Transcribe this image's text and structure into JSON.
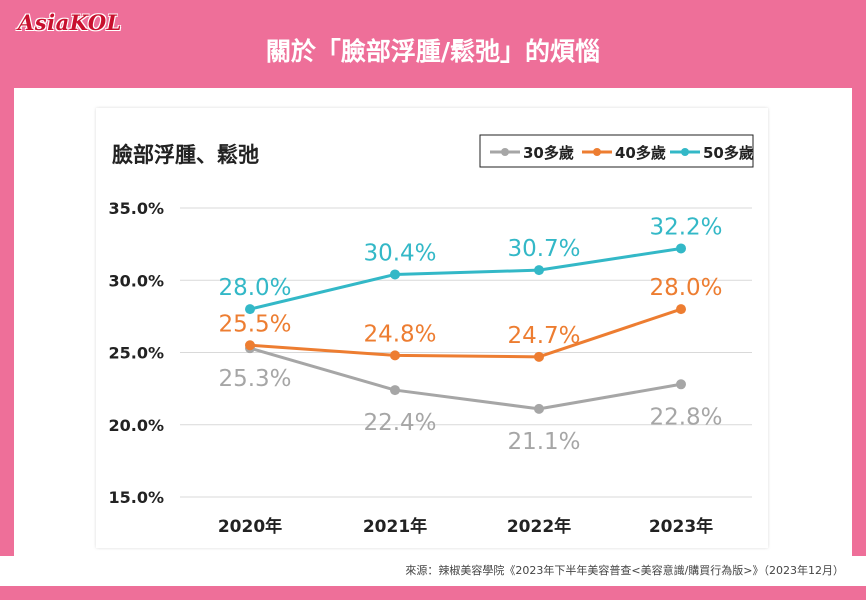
{
  "header": {
    "logo_text": "AsiaKOL",
    "title": "關於「臉部浮腫/鬆弛」的煩惱"
  },
  "colors": {
    "banner": "#ee6f99",
    "series_30": "#a6a6a6",
    "series_40": "#ed7d31",
    "series_50": "#33b8c7"
  },
  "chart_data": {
    "type": "line",
    "title": "臉部浮腫、鬆弛",
    "categories": [
      "2020年",
      "2021年",
      "2022年",
      "2023年"
    ],
    "series": [
      {
        "name": "30多歲",
        "values": [
          25.3,
          22.4,
          21.1,
          22.8
        ],
        "labels": [
          "25.3%",
          "22.4%",
          "21.1%",
          "22.8%"
        ]
      },
      {
        "name": "40多歲",
        "values": [
          25.5,
          24.8,
          24.7,
          28.0
        ],
        "labels": [
          "25.5%",
          "24.8%",
          "24.7%",
          "28.0%"
        ]
      },
      {
        "name": "50多歲",
        "values": [
          28.0,
          30.4,
          30.7,
          32.2
        ],
        "labels": [
          "28.0%",
          "30.4%",
          "30.7%",
          "32.2%"
        ]
      }
    ],
    "ylim": [
      15,
      35
    ],
    "yticks": [
      35,
      30,
      25,
      20,
      15
    ],
    "ytick_labels": [
      "35.0%",
      "30.0%",
      "25.0%",
      "20.0%",
      "15.0%"
    ],
    "grid": true,
    "legend": "top-right",
    "xlabel": "",
    "ylabel": ""
  },
  "footer": {
    "source": "來源：辣椒美容學院《2023年下半年美容普查<美容意識/購買行為版>》（2023年12月）"
  }
}
